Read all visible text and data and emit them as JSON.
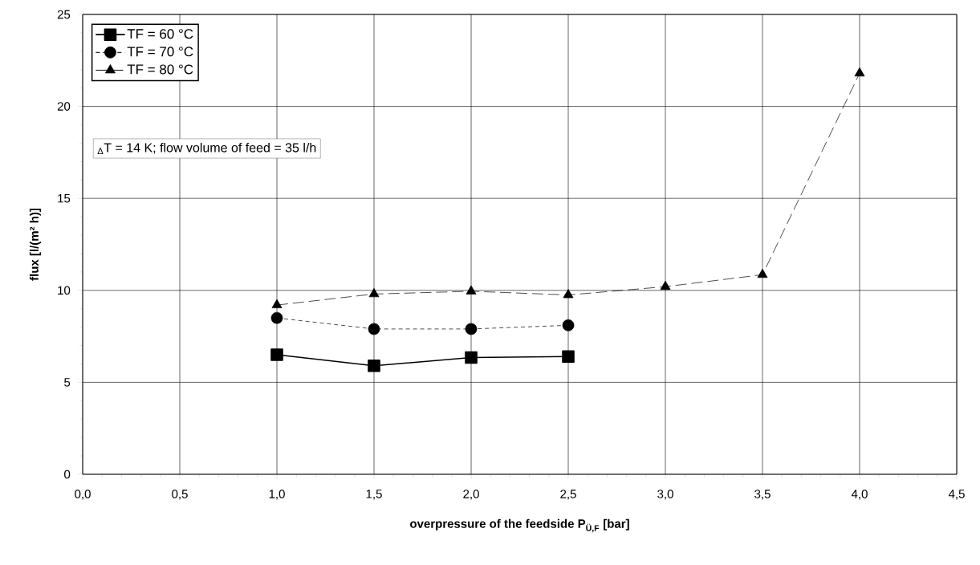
{
  "chart_data": {
    "type": "line",
    "xlabel": "overpressure of the feedside P$_{Ü,F}$ [bar]",
    "ylabel": "flux [l/(m² h)]",
    "xlim": [
      0,
      4.5
    ],
    "ylim": [
      0,
      25
    ],
    "xticks": [
      {
        "value": 0,
        "label": "0,0"
      },
      {
        "value": 0.5,
        "label": "0,5"
      },
      {
        "value": 1,
        "label": "1,0"
      },
      {
        "value": 1.5,
        "label": "1,5"
      },
      {
        "value": 2,
        "label": "2,0"
      },
      {
        "value": 2.5,
        "label": "2,5"
      },
      {
        "value": 3,
        "label": "3,0"
      },
      {
        "value": 3.5,
        "label": "3,5"
      },
      {
        "value": 4,
        "label": "4,0"
      },
      {
        "value": 4.5,
        "label": "4,5"
      }
    ],
    "yticks": [
      0,
      5,
      10,
      15,
      20,
      25
    ],
    "grid": true,
    "legend": "top left",
    "annotations": [
      "$_{Δ}$T = 14 K; flow volume of feed = 35 l/h"
    ],
    "series": [
      {
        "name": "TF = 60 °C",
        "color": "#000000",
        "marker": "square",
        "line_style": "solid",
        "x": [
          1,
          1.5,
          2,
          2.5
        ],
        "values": [
          6.5,
          5.9,
          6.35,
          6.4
        ]
      },
      {
        "name": "TF = 70 °C",
        "color": "#000000",
        "marker": "circle",
        "line_style": "dotted",
        "x": [
          1,
          1.5,
          2,
          2.5
        ],
        "values": [
          8.5,
          7.9,
          7.9,
          8.1
        ]
      },
      {
        "name": "TF = 80 °C",
        "color": "#000000",
        "marker": "triangle",
        "line_style": "dashed",
        "x": [
          1,
          1.5,
          2,
          2.5,
          3,
          3.5,
          4
        ],
        "values": [
          9.2,
          9.8,
          9.95,
          9.75,
          10.2,
          10.85,
          21.8
        ]
      }
    ]
  }
}
